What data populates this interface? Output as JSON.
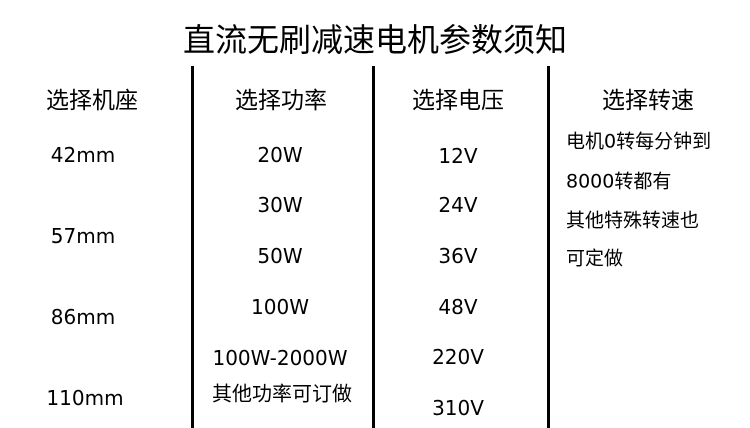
{
  "title": "直流无刷减速电机参数须知",
  "columns": {
    "frame": {
      "header": "选择机座",
      "items": [
        "42mm",
        "57mm",
        "86mm",
        "110mm"
      ]
    },
    "power": {
      "header": "选择功率",
      "items": [
        "20W",
        "30W",
        "50W",
        "100W",
        "100W-2000W",
        "其他功率可订做"
      ]
    },
    "voltage": {
      "header": "选择电压",
      "items": [
        "12V",
        "24V",
        "36V",
        "48V",
        "220V",
        "310V"
      ]
    },
    "speed": {
      "header": "选择转速",
      "lines": [
        "电机0转每分钟到",
        "8000转都有",
        "其他特殊转速也",
        "可定做"
      ]
    }
  }
}
